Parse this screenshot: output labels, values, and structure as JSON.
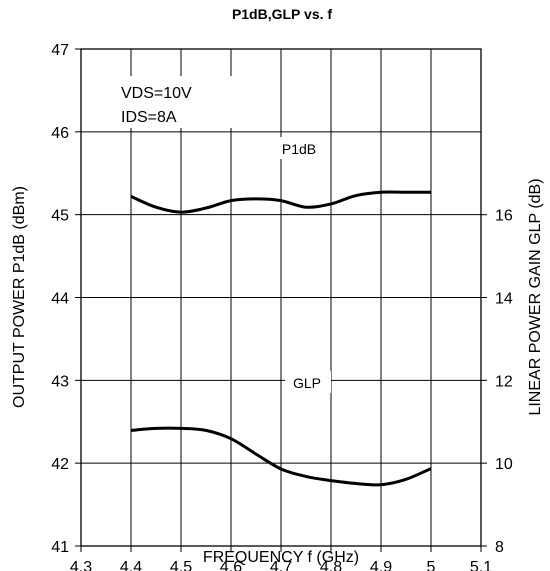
{
  "chart_data": {
    "type": "line",
    "title": "P1dB,GLP vs. f",
    "xlabel": "FREQUENCY f (GHz)",
    "ylabel": "OUTPUT POWER P1dB (dBm)",
    "y2label": "LINEAR POWER GAIN GLP (dB)",
    "xlim": [
      4.3,
      5.1
    ],
    "ylim": [
      41,
      47
    ],
    "y2lim": [
      8,
      20
    ],
    "xticks": [
      "4.3",
      "4.4",
      "4.5",
      "4.6",
      "4.7",
      "4.8",
      "4.9",
      "5",
      "5.1"
    ],
    "yticks": [
      "41",
      "42",
      "43",
      "44",
      "45",
      "46",
      "47"
    ],
    "y2ticks": [
      "8",
      "10",
      "12",
      "14",
      "16"
    ],
    "grid": true,
    "annotations": [
      "VDS=10V",
      "IDS=8A"
    ],
    "series": [
      {
        "name": "P1dB",
        "axis": "left",
        "x": [
          4.4,
          4.45,
          4.5,
          4.55,
          4.6,
          4.65,
          4.7,
          4.75,
          4.8,
          4.85,
          4.9,
          4.95,
          5.0
        ],
        "values": [
          45.22,
          45.09,
          45.03,
          45.08,
          45.17,
          45.19,
          45.17,
          45.09,
          45.13,
          45.23,
          45.27,
          45.27,
          45.27
        ]
      },
      {
        "name": "GLP",
        "axis": "right",
        "x": [
          4.4,
          4.45,
          4.5,
          4.55,
          4.6,
          4.65,
          4.7,
          4.75,
          4.8,
          4.85,
          4.9,
          4.95,
          5.0
        ],
        "values": [
          10.79,
          10.84,
          10.84,
          10.79,
          10.59,
          10.22,
          9.86,
          9.68,
          9.58,
          9.51,
          9.48,
          9.61,
          9.87
        ]
      }
    ]
  }
}
